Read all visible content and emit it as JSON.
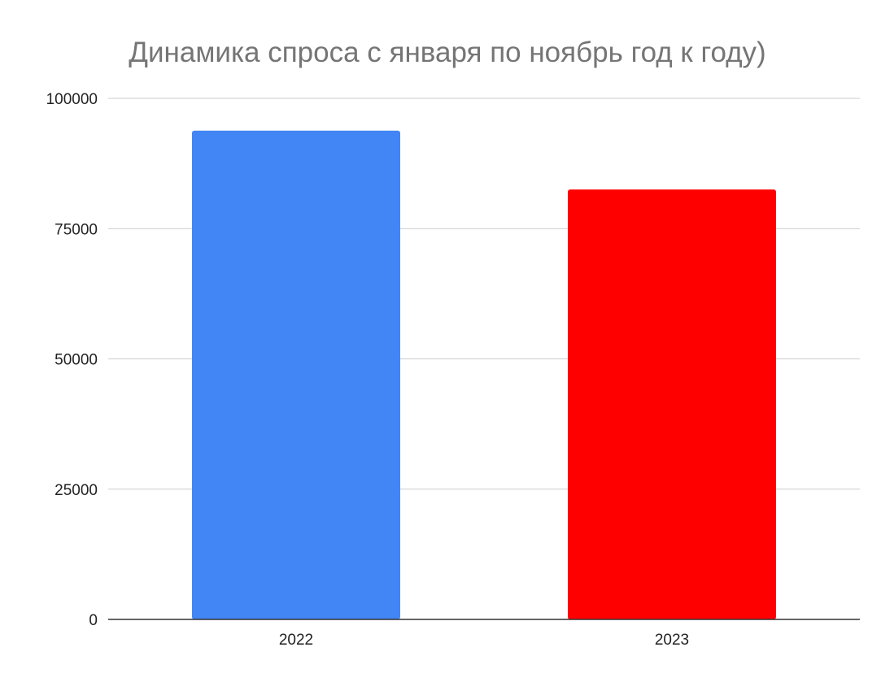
{
  "chart_data": {
    "type": "bar",
    "title": "Динамика спроса с января по ноябрь год к году)",
    "categories": [
      "2022",
      "2023"
    ],
    "values": [
      93800,
      82500
    ],
    "colors": [
      "#4285f4",
      "#ff0000"
    ],
    "ylim": [
      0,
      100000
    ],
    "yticks": [
      0,
      25000,
      50000,
      75000,
      100000
    ],
    "grid": true,
    "xlabel": "",
    "ylabel": ""
  }
}
